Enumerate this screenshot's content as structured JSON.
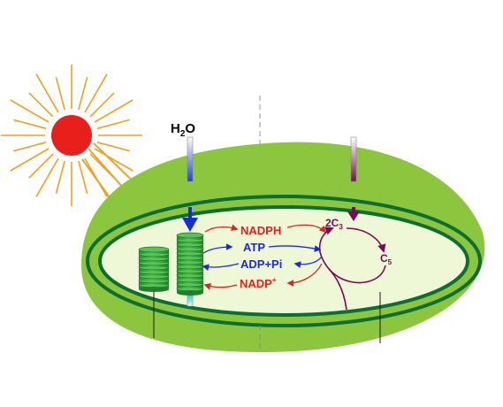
{
  "diagram": {
    "water": {
      "main": "H",
      "sub": "2",
      "tail": "O"
    },
    "products": {
      "nadph": "NADPH",
      "atp": "ATP",
      "adp_pi": "ADP+Pi",
      "nadp": {
        "main": "NADP",
        "sup": "+"
      }
    },
    "calvin": {
      "c3": {
        "prefix": "2C",
        "sub": "3"
      },
      "c5": {
        "main": "C",
        "sub": "5"
      }
    },
    "colors": {
      "nadph_arrow": "#e3201b",
      "atp_arrow": "#1a2bd8",
      "calvin": "#7a0a57",
      "sun": "#e8201c",
      "sun_rays": "#f0a020",
      "cell": "#8cc63f",
      "membrane": "#0b6e33",
      "stroma": "#eef7d6",
      "thylakoid": "#2f9e3a"
    }
  }
}
